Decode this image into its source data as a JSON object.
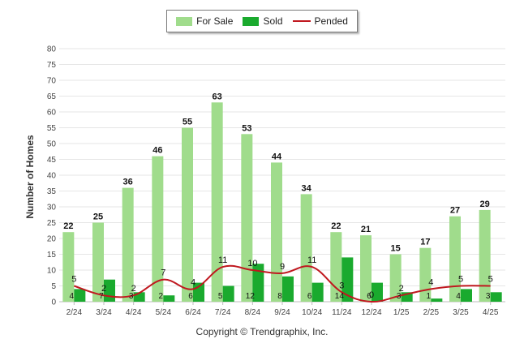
{
  "chart_data": {
    "type": "bar",
    "categories": [
      "2/24",
      "3/24",
      "4/24",
      "5/24",
      "6/24",
      "7/24",
      "8/24",
      "9/24",
      "10/24",
      "11/24",
      "12/24",
      "1/25",
      "2/25",
      "3/25",
      "4/25"
    ],
    "series": [
      {
        "name": "For Sale",
        "type": "bar",
        "color": "#a0dc8c",
        "values": [
          22,
          25,
          36,
          46,
          55,
          63,
          53,
          44,
          34,
          22,
          21,
          15,
          17,
          27,
          29
        ]
      },
      {
        "name": "Sold",
        "type": "bar",
        "color": "#1aaa2e",
        "values": [
          4,
          7,
          3,
          2,
          6,
          5,
          12,
          8,
          6,
          14,
          6,
          3,
          1,
          4,
          3
        ]
      },
      {
        "name": "Pended",
        "type": "line",
        "color": "#c0181f",
        "values": [
          5,
          2,
          2,
          7,
          4,
          11,
          10,
          9,
          11,
          3,
          0,
          2,
          4,
          5,
          5
        ]
      }
    ],
    "title": "",
    "xlabel": "",
    "ylabel": "Number of Homes",
    "ylim": [
      0,
      80
    ],
    "yticks": [
      0,
      5,
      10,
      15,
      20,
      25,
      30,
      35,
      40,
      45,
      50,
      55,
      60,
      65,
      70,
      75,
      80
    ],
    "grid": true,
    "legend_position": "top-center"
  },
  "footer": {
    "copyright": "Copyright © Trendgraphix, Inc."
  }
}
